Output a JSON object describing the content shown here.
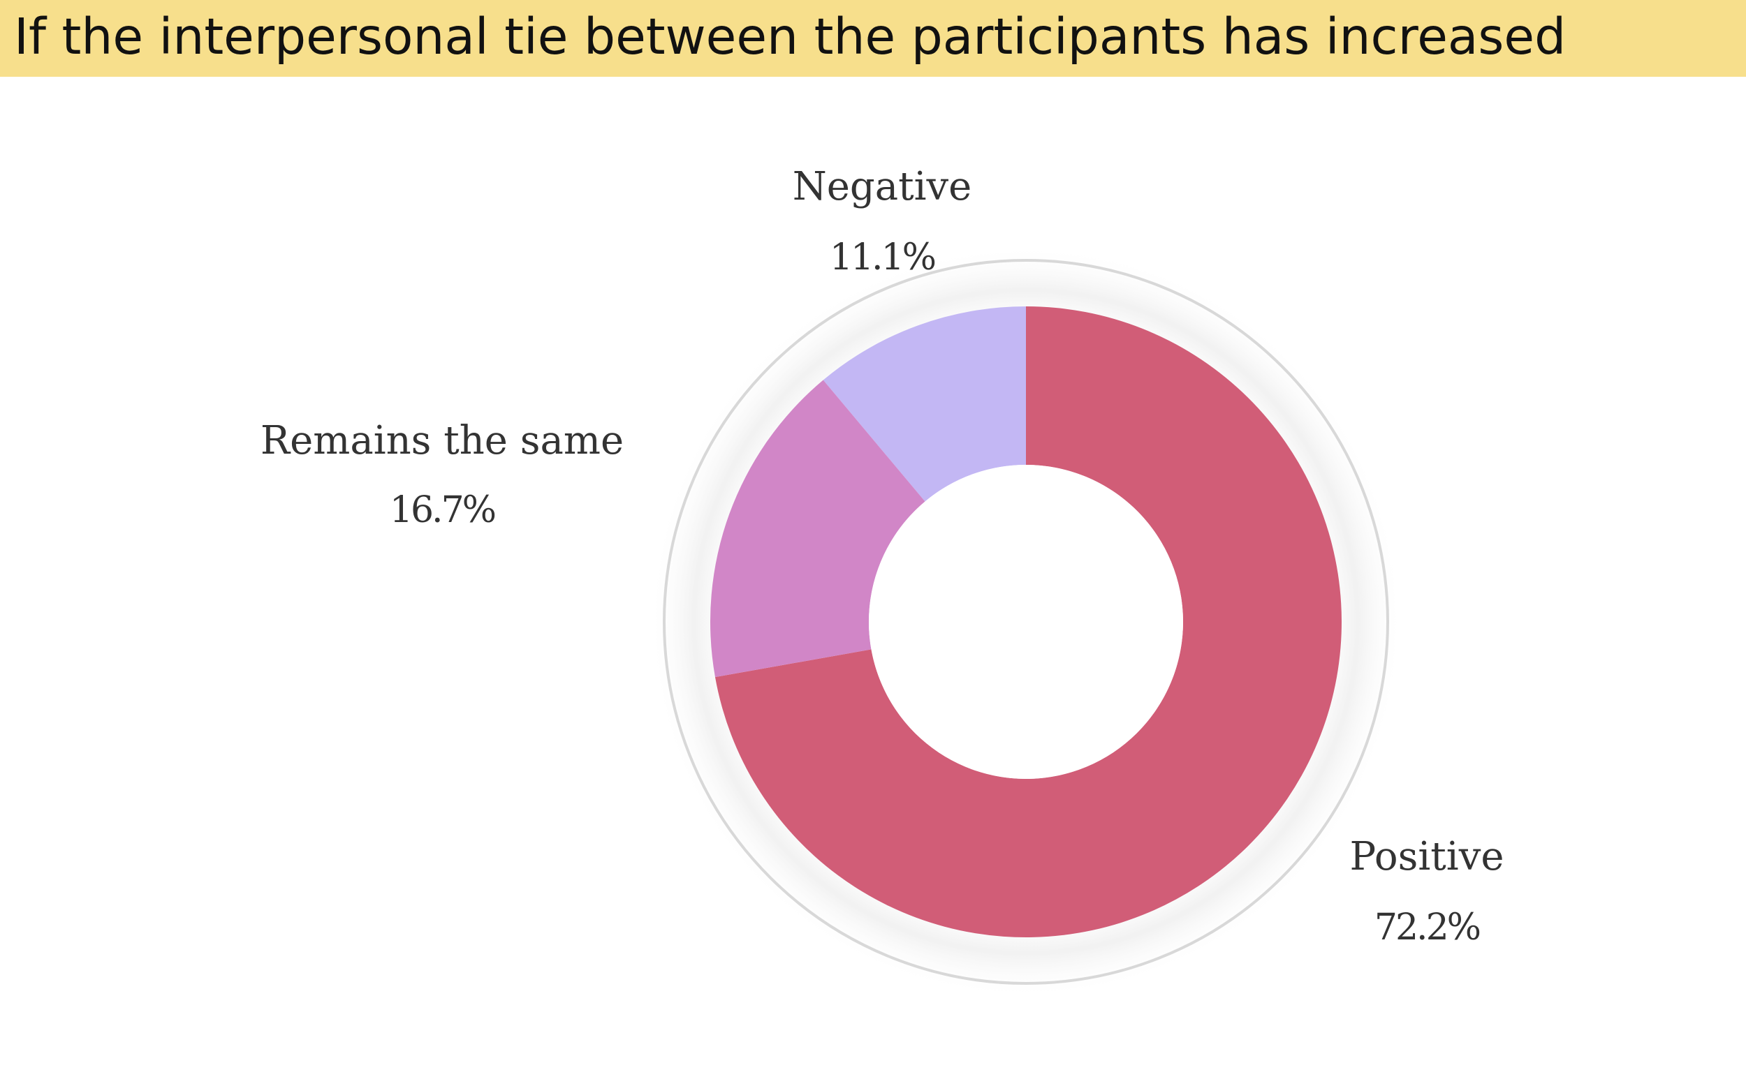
{
  "header": {
    "title": "If the interpersonal tie between the participants has increased"
  },
  "colors": {
    "header_bg": "#f7df8c",
    "positive": "#d15d77",
    "remains_the_same": "#d186c7",
    "negative": "#c3b7f4"
  },
  "chart_data": {
    "type": "pie",
    "variant": "donut",
    "title": "If the interpersonal tie between the participants has increased",
    "slices": [
      {
        "label": "Negative",
        "value": 11.1,
        "value_label": "11.1%",
        "color": "#c3b7f4"
      },
      {
        "label": "Positive",
        "value": 72.2,
        "value_label": "72.2%",
        "color": "#d15d77"
      },
      {
        "label": "Remains the same",
        "value": 16.7,
        "value_label": "16.7%",
        "color": "#d186c7"
      }
    ],
    "legend": "none"
  }
}
